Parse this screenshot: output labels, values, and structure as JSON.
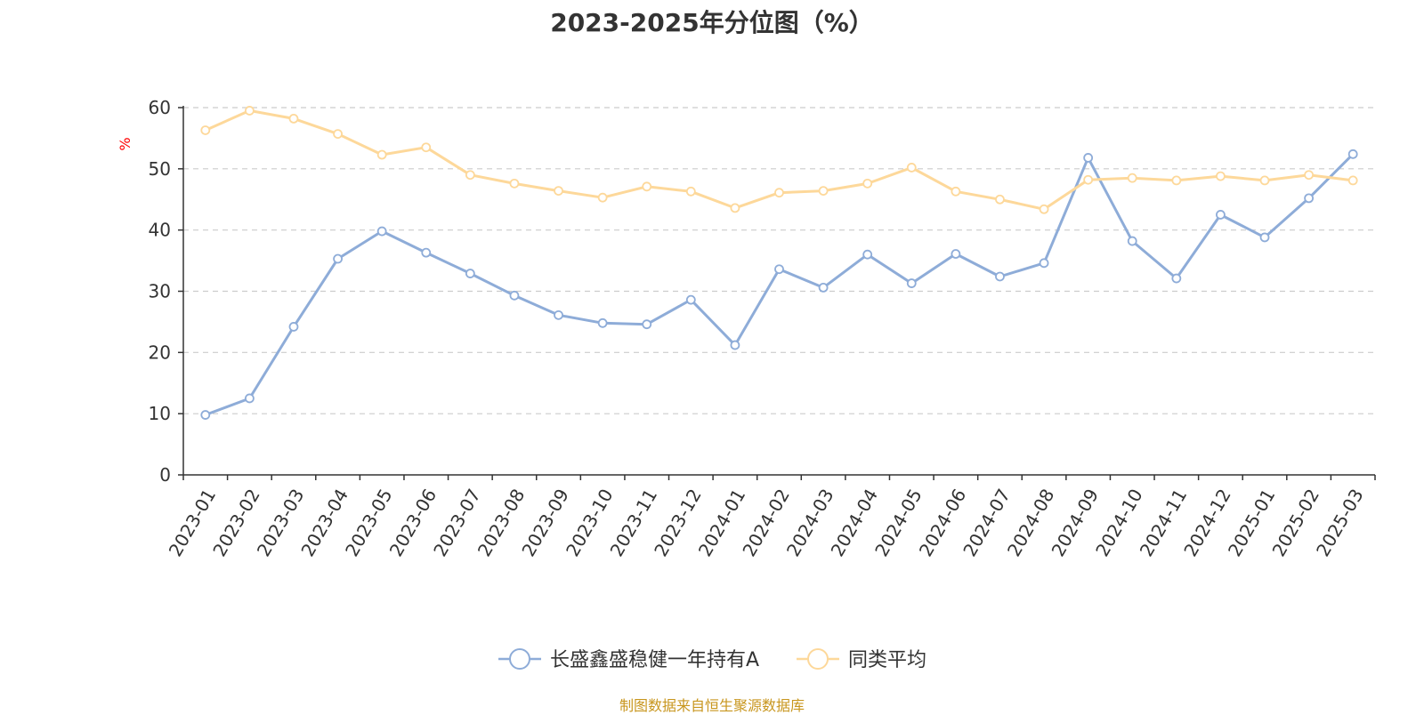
{
  "title": "2023-2025年分位图（%）",
  "source_note": "制图数据来自恒生聚源数据库",
  "colors": {
    "series_1": "#8eacd8",
    "series_2": "#fdd89a",
    "y_unit": "#ff0000",
    "grid": "#cccccc",
    "axis": "#333333",
    "source": "#c8961e"
  },
  "chart_data": {
    "type": "line",
    "title": "2023-2025年分位图（%）",
    "xlabel": "",
    "ylabel": "%",
    "ylim": [
      0,
      60
    ],
    "y_ticks": [
      0,
      10,
      20,
      30,
      40,
      50,
      60
    ],
    "grid": "horizontal dashed",
    "legend_position": "bottom-center",
    "categories": [
      "2023-01",
      "2023-02",
      "2023-03",
      "2023-04",
      "2023-05",
      "2023-06",
      "2023-07",
      "2023-08",
      "2023-09",
      "2023-10",
      "2023-11",
      "2023-12",
      "2024-01",
      "2024-02",
      "2024-03",
      "2024-04",
      "2024-05",
      "2024-06",
      "2024-07",
      "2024-08",
      "2024-09",
      "2024-10",
      "2024-11",
      "2024-12",
      "2025-01",
      "2025-02",
      "2025-03"
    ],
    "series": [
      {
        "name": "长盛鑫盛稳健一年持有A",
        "color": "#8eacd8",
        "values": [
          9.8,
          12.5,
          24.2,
          35.3,
          39.8,
          36.3,
          32.9,
          29.3,
          26.1,
          24.8,
          24.6,
          28.6,
          21.2,
          33.6,
          30.6,
          36.0,
          31.3,
          36.1,
          32.4,
          34.6,
          51.8,
          38.2,
          32.1,
          42.5,
          38.8,
          45.2,
          52.4
        ]
      },
      {
        "name": "同类平均",
        "color": "#fdd89a",
        "values": [
          56.3,
          59.5,
          58.2,
          55.7,
          52.3,
          53.5,
          49.0,
          47.6,
          46.4,
          45.3,
          47.1,
          46.3,
          43.6,
          46.1,
          46.4,
          47.6,
          50.2,
          46.3,
          45.0,
          43.4,
          48.2,
          48.5,
          48.1,
          48.8,
          48.1,
          49.0,
          48.1
        ]
      }
    ]
  }
}
